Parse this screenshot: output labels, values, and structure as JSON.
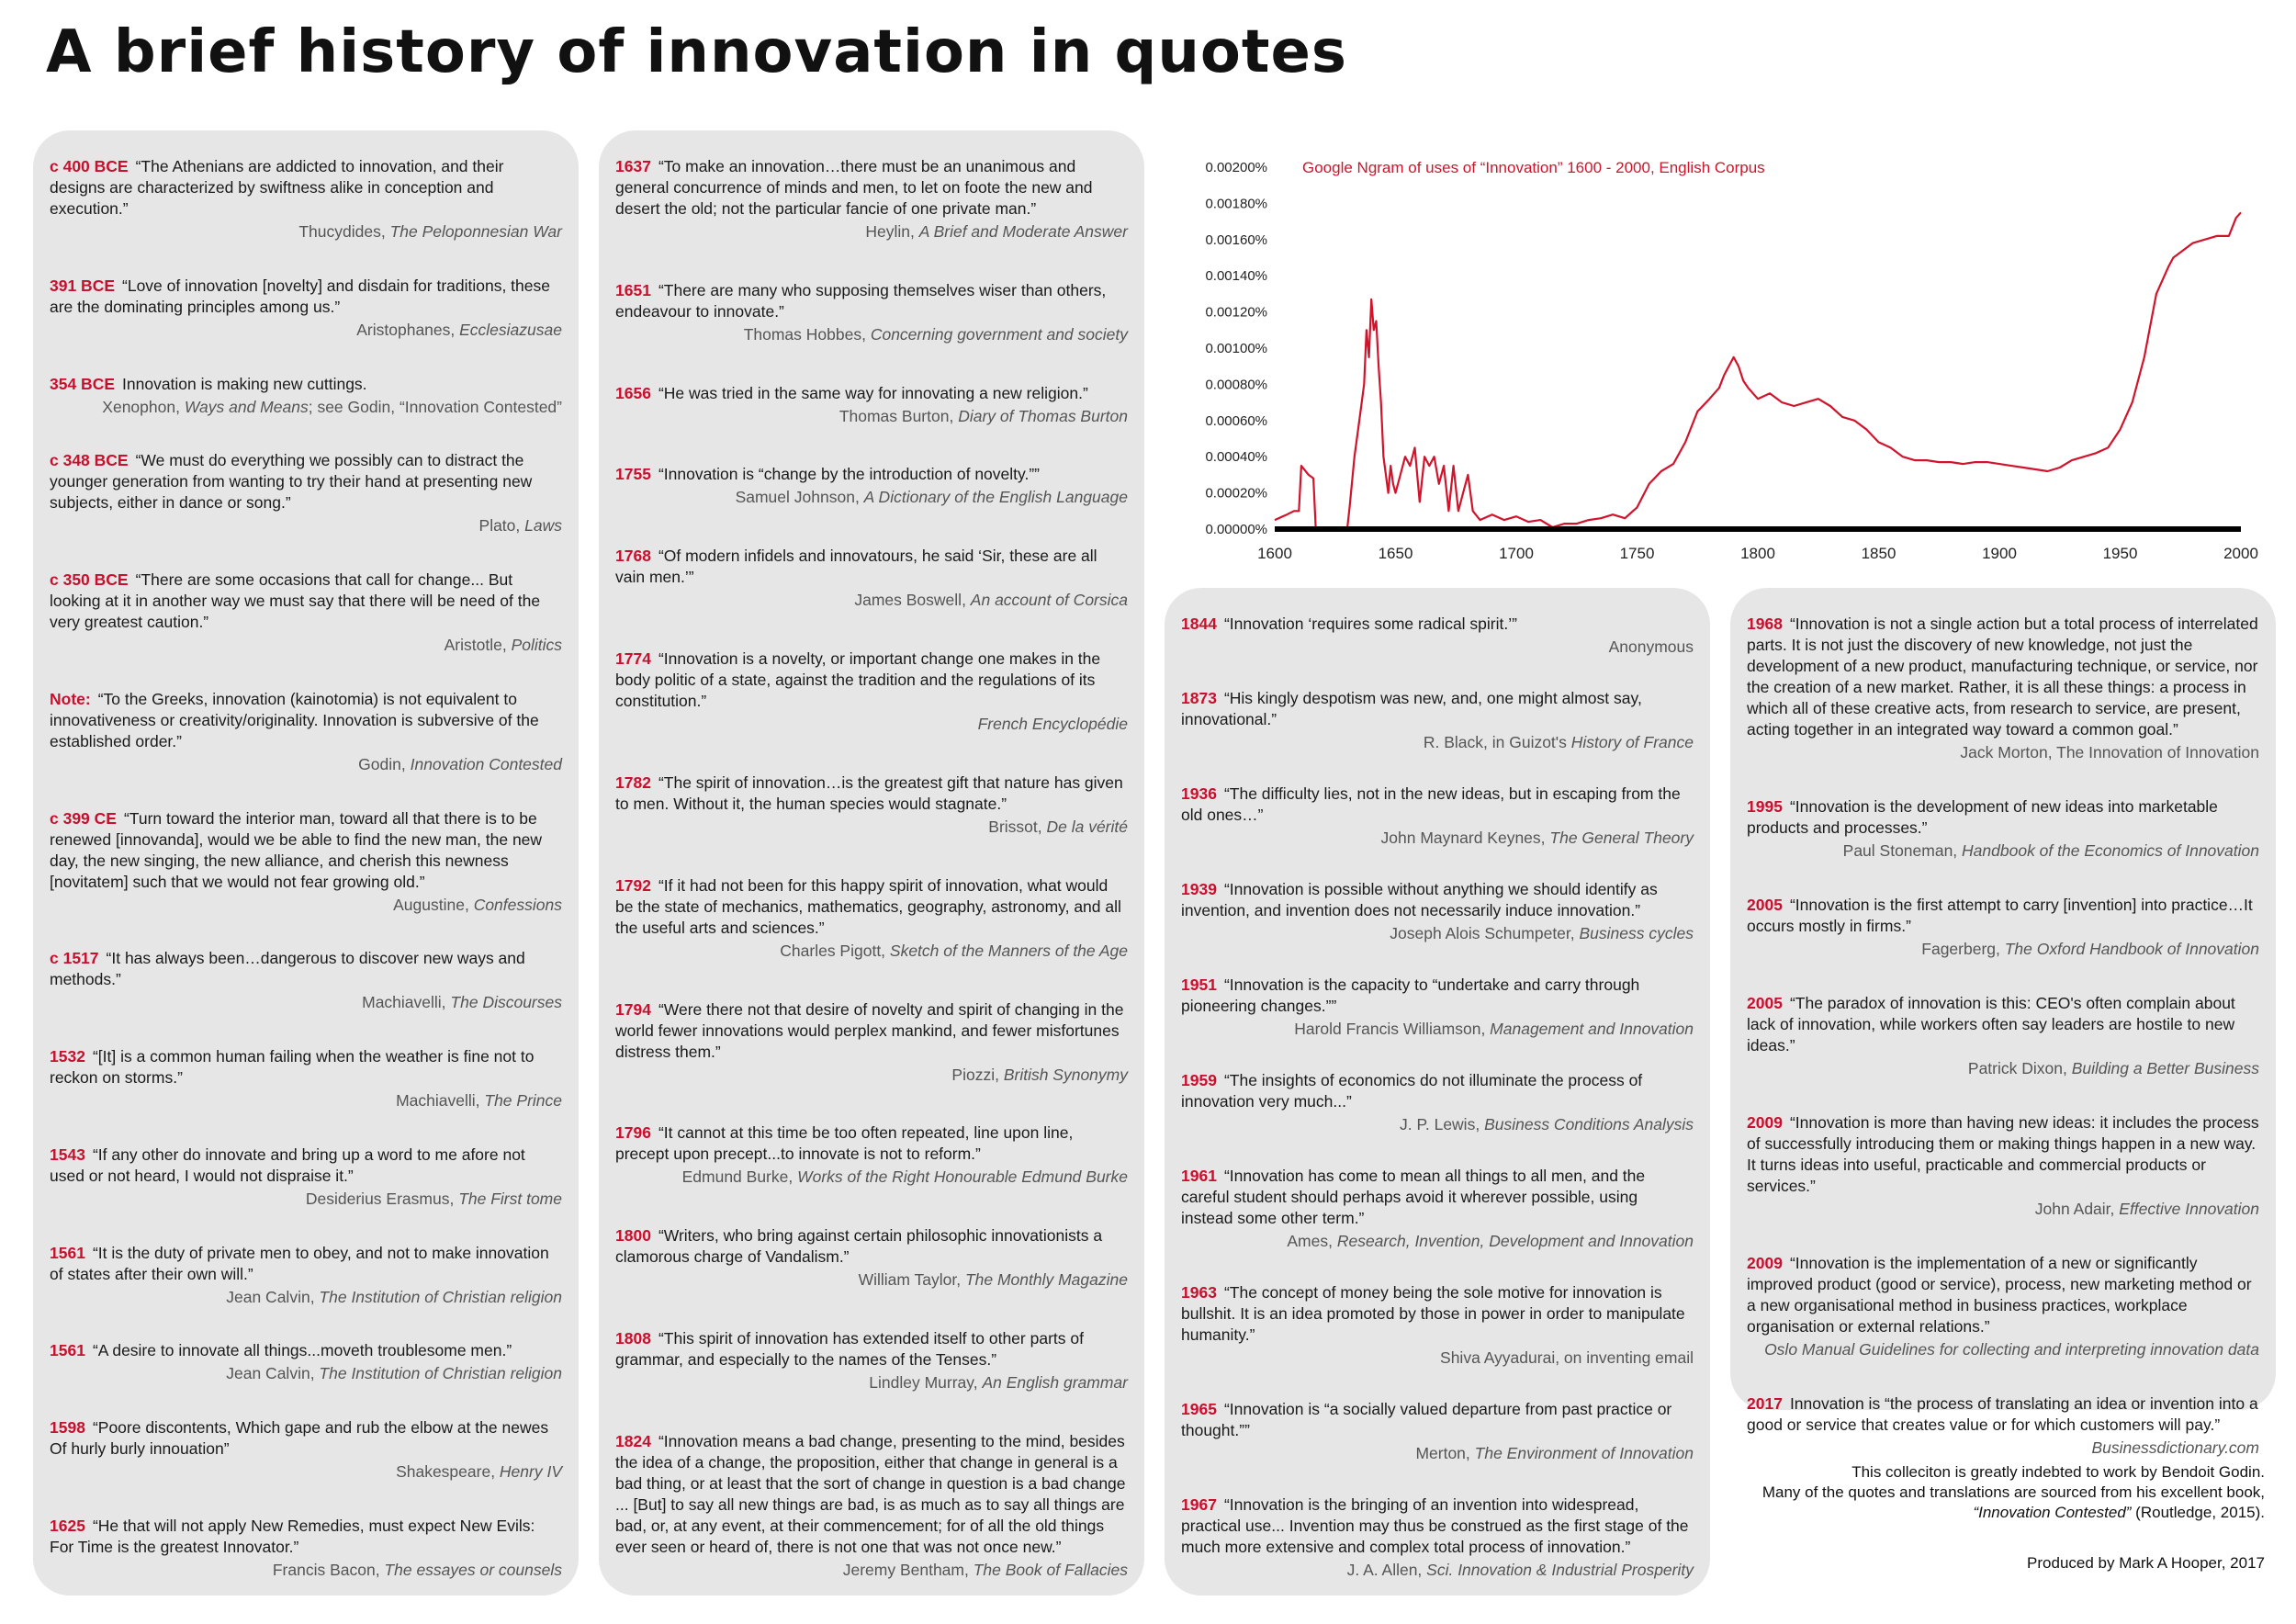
{
  "title": "A brief history of innovation in quotes",
  "columns": [
    [
      {
        "date": "c 400 BCE",
        "text": "“The Athenians are addicted to innovation, and their designs are characterized by swiftness alike in conception and execution.”",
        "author": "Thucydides, ",
        "work": "The Peloponnesian War",
        "work_after": ""
      },
      {
        "date": "391 BCE",
        "text": "“Love of innovation [novelty] and disdain for traditions, these are the dominating principles among us.”",
        "author": "Aristophanes, ",
        "work": "Ecclesiazusae",
        "work_after": ""
      },
      {
        "date": "354 BCE",
        "text": "Innovation is making new cuttings.",
        "author": "Xenophon, ",
        "work": "Ways and Means",
        "work_after": "; see Godin, “Innovation Contested”"
      },
      {
        "date": "c 348 BCE",
        "text": "“We must do everything we possibly can to distract the younger generation from wanting to try their hand at presenting new subjects, either in dance or song.”",
        "author": "Plato, ",
        "work": "Laws",
        "work_after": ""
      },
      {
        "date": "c 350 BCE",
        "text": "“There are some occasions that call for change... But looking at it in another way we must say that there will be need of the very greatest caution.”",
        "author": "Aristotle, ",
        "work": "Politics",
        "work_after": ""
      },
      {
        "date": "Note:",
        "text": "“To the Greeks, innovation (kainotomia) is not equivalent to innovativeness or creativity/originality. Innovation is subversive of the established order.”",
        "author": "Godin, ",
        "work": "Innovation Contested",
        "work_after": ""
      },
      {
        "date": "c 399 CE",
        "text": "“Turn toward the interior man, toward all that there is to be renewed [innovanda], would we be able to find the new man, the new day, the new singing, the new alliance, and cherish this newness [novitatem] such that we would not fear growing old.”",
        "author": "Augustine, ",
        "work": "Confessions",
        "work_after": ""
      },
      {
        "date": "c 1517",
        "text": "“It has always been…dangerous to discover new ways and methods.”",
        "author": "Machiavelli, ",
        "work": "The Discourses",
        "work_after": ""
      },
      {
        "date": "1532",
        "text": "“[It] is a common human failing when the weather is fine not to reckon on storms.”",
        "author": "Machiavelli, ",
        "work": "The Prince",
        "work_after": ""
      },
      {
        "date": "1543",
        "text": "“If any other do innovate and bring up a word to me afore not used or not heard, I would not dispraise it.”",
        "author": "Desiderius Erasmus, ",
        "work": "The First tome",
        "work_after": ""
      },
      {
        "date": "1561",
        "text": "“It is the duty of private men to obey, and not to make innovation of states after their own will.”",
        "author": "Jean Calvin, ",
        "work": "The Institution of Christian religion",
        "work_after": ""
      },
      {
        "date": "1561",
        "text": "“A desire to innovate all things...moveth troublesome men.”",
        "author": "Jean Calvin, ",
        "work": "The Institution of Christian religion",
        "work_after": ""
      },
      {
        "date": "1598",
        "text": "“Poore discontents, Which gape and rub the elbow at the newes Of hurly burly innouation”",
        "author": "Shakespeare, ",
        "work": "Henry IV",
        "work_after": ""
      },
      {
        "date": "1625",
        "text": "“He that will not apply New Remedies, must expect New Evils: For Time is the greatest Innovator.”",
        "author": "Francis Bacon, ",
        "work": "The essayes or counsels",
        "work_after": ""
      }
    ],
    [
      {
        "date": "1637",
        "text": "“To make an innovation…there must be an unanimous and general concurrence of minds and men, to let on foote the new and desert the old; not the particular fancie of one private man.”",
        "author": "Heylin, ",
        "work": "A Brief and Moderate Answer",
        "work_after": ""
      },
      {
        "date": "1651",
        "text": "“There are many who supposing themselves wiser than others, endeavour to innovate.”",
        "author": "Thomas Hobbes, ",
        "work": "Concerning government and society",
        "work_after": ""
      },
      {
        "date": "1656",
        "text": "“He was tried in the same way for innovating a new religion.”",
        "author": "Thomas Burton, ",
        "work": "Diary of Thomas Burton",
        "work_after": ""
      },
      {
        "date": "1755",
        "text": "“Innovation is “change by the introduction of novelty.””",
        "author": "Samuel Johnson, ",
        "work": "A Dictionary of the English Language",
        "work_after": ""
      },
      {
        "date": "1768",
        "text": "“Of modern infidels and innovatours, he said ‘Sir, these are all vain men.’”",
        "author": "James Boswell, ",
        "work": "An account of Corsica",
        "work_after": ""
      },
      {
        "date": "1774",
        "text": "“Innovation is a novelty, or important change one makes in the body politic of a state, against the tradition and the regulations of its constitution.”",
        "author": "",
        "work": "French Encyclopédie",
        "work_after": ""
      },
      {
        "date": "1782",
        "text": "“The spirit of innovation…is the greatest gift that nature has given to men. Without it, the human species would stagnate.”",
        "author": "Brissot, ",
        "work": "De la vérité",
        "work_after": ""
      },
      {
        "date": "1792",
        "text": "“If it had not been for this happy spirit of innovation, what would be the state of mechanics, mathematics, geography, astronomy, and all the useful arts and sciences.”",
        "author": "Charles Pigott, ",
        "work": "Sketch of the Manners of the Age",
        "work_after": ""
      },
      {
        "date": "1794",
        "text": "“Were there not that desire of novelty and spirit of changing in the world fewer innovations would perplex mankind, and fewer misfortunes distress them.”",
        "author": "Piozzi, ",
        "work": "British Synonymy",
        "work_after": ""
      },
      {
        "date": "1796",
        "text": "“It cannot at this time be too often repeated, line upon line, precept upon precept...to innovate is not to reform.”",
        "author": "Edmund Burke, ",
        "work": "Works of the Right Honourable Edmund Burke",
        "work_after": ""
      },
      {
        "date": "1800",
        "text": "“Writers, who bring against certain philosophic innovationists a clamorous charge of Vandalism.”",
        "author": "William Taylor, ",
        "work": "The Monthly Magazine",
        "work_after": ""
      },
      {
        "date": "1808",
        "text": "“This spirit of innovation has extended itself to other parts of grammar, and especially to the names of the Tenses.”",
        "author": "Lindley Murray, ",
        "work": "An English grammar",
        "work_after": ""
      },
      {
        "date": "1824",
        "text": "“Innovation means a bad change, presenting to the mind, besides the idea of a change, the proposition, either that change in general is a bad thing, or at least that the sort of change in question is a bad change ... [But] to say all new things are bad, is as much as to say all things are bad, or, at any event, at their commencement; for of all the old things ever seen or heard of, there is not one that was not once new.”",
        "author": "Jeremy Bentham, ",
        "work": "The Book of Fallacies",
        "work_after": ""
      }
    ],
    [
      {
        "date": "1844",
        "text": "“Innovation ‘requires some radical spirit.’”",
        "author": "Anonymous",
        "work": "",
        "work_after": ""
      },
      {
        "date": "1873",
        "text": "“His kingly despotism was new, and, one might almost say, innovational.”",
        "author": "R. Black, in Guizot's ",
        "work": "History of France",
        "work_after": ""
      },
      {
        "date": "1936",
        "text": "“The difficulty lies, not in the new ideas, but in escaping from the old ones…”",
        "author": "John Maynard Keynes, ",
        "work": "The General Theory",
        "work_after": ""
      },
      {
        "date": "1939",
        "text": "“Innovation is possible without anything we should identify as invention, and invention does not necessarily induce innovation.”",
        "author": "Joseph Alois Schumpeter, ",
        "work": "Business cycles",
        "work_after": ""
      },
      {
        "date": "1951",
        "text": "“Innovation is the capacity to “undertake and carry through pioneering changes.””",
        "author": "Harold Francis Williamson, ",
        "work": "Management and Innovation",
        "work_after": ""
      },
      {
        "date": "1959",
        "text": "“The insights of economics do not illuminate the process of innovation very much...”",
        "author": "J. P. Lewis, ",
        "work": "Business Conditions Analysis",
        "work_after": ""
      },
      {
        "date": "1961",
        "text": "“Innovation has come to mean all things to all men, and the careful student should perhaps avoid it wherever possible, using instead some other term.”",
        "author": "Ames, ",
        "work": "Research, Invention, Development and Innovation",
        "work_after": ""
      },
      {
        "date": "1963",
        "text": "“The concept of money being the sole motive for innovation is bullshit. It is an idea promoted by those in power in order to manipulate humanity.”",
        "author": "Shiva Ayyadurai, on inventing email",
        "work": "",
        "work_after": ""
      },
      {
        "date": "1965",
        "text": "“Innovation is “a socially valued departure from past practice or thought.””",
        "author": "Merton, ",
        "work": "The Environment of Innovation",
        "work_after": ""
      },
      {
        "date": "1967",
        "text": "“Innovation is the bringing of an invention into widespread, practical use... Invention may thus be construed as the first stage of the much more extensive and complex total process of innovation.”",
        "author": "J. A. Allen, ",
        "work": "Sci. Innovation & Industrial Prosperity",
        "work_after": ""
      }
    ],
    [
      {
        "date": "1968",
        "text": "“Innovation is not a single action but a total process of interrelated parts. It is not just the discovery of new knowledge, not just the development of a new product, manufacturing technique, or service, nor the creation of a new market. Rather, it is all these things: a process in which all of these creative acts, from research to service, are present, acting together in an integrated way toward a common goal.”",
        "author": "Jack Morton, The Innovation of Innovation",
        "work": "",
        "work_after": ""
      },
      {
        "date": "1995",
        "text": "“Innovation is the development of new ideas into marketable products and processes.”",
        "author": "Paul Stoneman, ",
        "work": "Handbook of the Economics of Innovation",
        "work_after": ""
      },
      {
        "date": "2005",
        "text": "“Innovation is the first attempt to carry [invention] into practice…It occurs mostly in firms.”",
        "author": "Fagerberg, ",
        "work": "The Oxford Handbook of Innovation",
        "work_after": ""
      },
      {
        "date": "2005",
        "text": "“The paradox of innovation is this: CEO's often complain about lack of innovation, while workers often say leaders are hostile to new ideas.”",
        "author": "Patrick Dixon, ",
        "work": "Building a Better Business",
        "work_after": ""
      },
      {
        "date": "2009",
        "text": "“Innovation is more than having new ideas: it includes the process of successfully introducing them or making things happen in a new way. It turns ideas into useful, practicable and commercial products or services.”",
        "author": "John Adair, ",
        "work": "Effective Innovation",
        "work_after": ""
      },
      {
        "date": "2009",
        "text": "“Innovation is the implementation of a new or significantly improved product (good or service), process, new marketing method or a new organisational method in business practices, workplace organisation or external relations.”",
        "author": "",
        "work": "Oslo Manual Guidelines for collecting and interpreting innovation data",
        "work_after": ""
      },
      {
        "date": "2017",
        "text": "Innovation is “the process of translating an idea or invention into a good or service that creates value or for which customers will pay.”",
        "author": "",
        "work": "Businessdictionary.com",
        "work_after": ""
      }
    ]
  ],
  "footer": {
    "credit_line1": "This colleciton is greatly indebted to work by Bendoit Godin.",
    "credit_line2": "Many of the quotes and translations are sourced from his excellent book, ",
    "credit_book": "“Innovation Contested”",
    "credit_after": " (Routledge, 2015).",
    "producer": "Produced by Mark A Hooper, 2017"
  },
  "chart_data": {
    "type": "line",
    "title": "Google Ngram of uses of “Innovation” 1600 - 2000, English Corpus",
    "xlabel": "",
    "ylabel": "",
    "xlim": [
      1600,
      2000
    ],
    "ylim": [
      0,
      0.002
    ],
    "x_ticks": [
      "1600",
      "1650",
      "1700",
      "1750",
      "1800",
      "1850",
      "1900",
      "1950",
      "2000"
    ],
    "y_ticks": [
      "0.00000%",
      "0.00020%",
      "0.00040%",
      "0.00060%",
      "0.00080%",
      "0.00100%",
      "0.00120%",
      "0.00140%",
      "0.00160%",
      "0.00180%",
      "0.00200%"
    ],
    "line_color": "#d0142c",
    "series": [
      {
        "x": [
          1600,
          1605,
          1608,
          1610,
          1611,
          1614,
          1616,
          1617,
          1620,
          1630,
          1631,
          1633,
          1635,
          1637,
          1638,
          1639,
          1640,
          1641,
          1642,
          1643,
          1644,
          1645,
          1646,
          1647,
          1648,
          1649,
          1650,
          1652,
          1654,
          1656,
          1658,
          1660,
          1662,
          1664,
          1666,
          1668,
          1670,
          1672,
          1674,
          1676,
          1678,
          1680,
          1682,
          1685,
          1690,
          1695,
          1700,
          1705,
          1710,
          1715,
          1720,
          1725,
          1730,
          1735,
          1740,
          1745,
          1750,
          1755,
          1760,
          1765,
          1770,
          1775,
          1780,
          1784,
          1786,
          1788,
          1790,
          1792,
          1794,
          1796,
          1800,
          1805,
          1810,
          1815,
          1820,
          1825,
          1830,
          1835,
          1840,
          1845,
          1850,
          1855,
          1860,
          1865,
          1870,
          1875,
          1880,
          1885,
          1890,
          1895,
          1900,
          1905,
          1910,
          1915,
          1920,
          1925,
          1930,
          1935,
          1940,
          1945,
          1950,
          1955,
          1960,
          1965,
          1970,
          1972,
          1975,
          1980,
          1985,
          1990,
          1995,
          1998,
          2000
        ],
        "y": [
          5e-05,
          8e-05,
          0.0001,
          0.0001,
          0.00035,
          0.0003,
          0.00028,
          0,
          0,
          0,
          0.00012,
          0.0004,
          0.0006,
          0.0008,
          0.0011,
          0.00095,
          0.00127,
          0.0011,
          0.00115,
          0.0009,
          0.0007,
          0.0004,
          0.0003,
          0.0002,
          0.00035,
          0.00025,
          0.0002,
          0.0003,
          0.0004,
          0.00035,
          0.00045,
          0.00015,
          0.0004,
          0.00035,
          0.0004,
          0.00025,
          0.00035,
          0.0001,
          0.00035,
          0.0001,
          0.0002,
          0.0003,
          0.0001,
          5e-05,
          8e-05,
          5e-05,
          7e-05,
          4e-05,
          5e-05,
          1e-05,
          3e-05,
          3e-05,
          5e-05,
          6e-05,
          8e-05,
          6e-05,
          0.00012,
          0.00025,
          0.00032,
          0.00036,
          0.00048,
          0.00065,
          0.00072,
          0.00078,
          0.00085,
          0.0009,
          0.00095,
          0.0009,
          0.00082,
          0.00078,
          0.00072,
          0.00075,
          0.0007,
          0.00068,
          0.0007,
          0.00072,
          0.00068,
          0.00062,
          0.0006,
          0.00055,
          0.00048,
          0.00045,
          0.0004,
          0.00038,
          0.00038,
          0.00037,
          0.00037,
          0.00036,
          0.00037,
          0.00037,
          0.00036,
          0.00035,
          0.00034,
          0.00033,
          0.00032,
          0.00034,
          0.00038,
          0.0004,
          0.00042,
          0.00045,
          0.00055,
          0.0007,
          0.00095,
          0.0013,
          0.00145,
          0.0015,
          0.00153,
          0.00158,
          0.0016,
          0.00162,
          0.00162,
          0.00172,
          0.00175
        ]
      }
    ]
  }
}
